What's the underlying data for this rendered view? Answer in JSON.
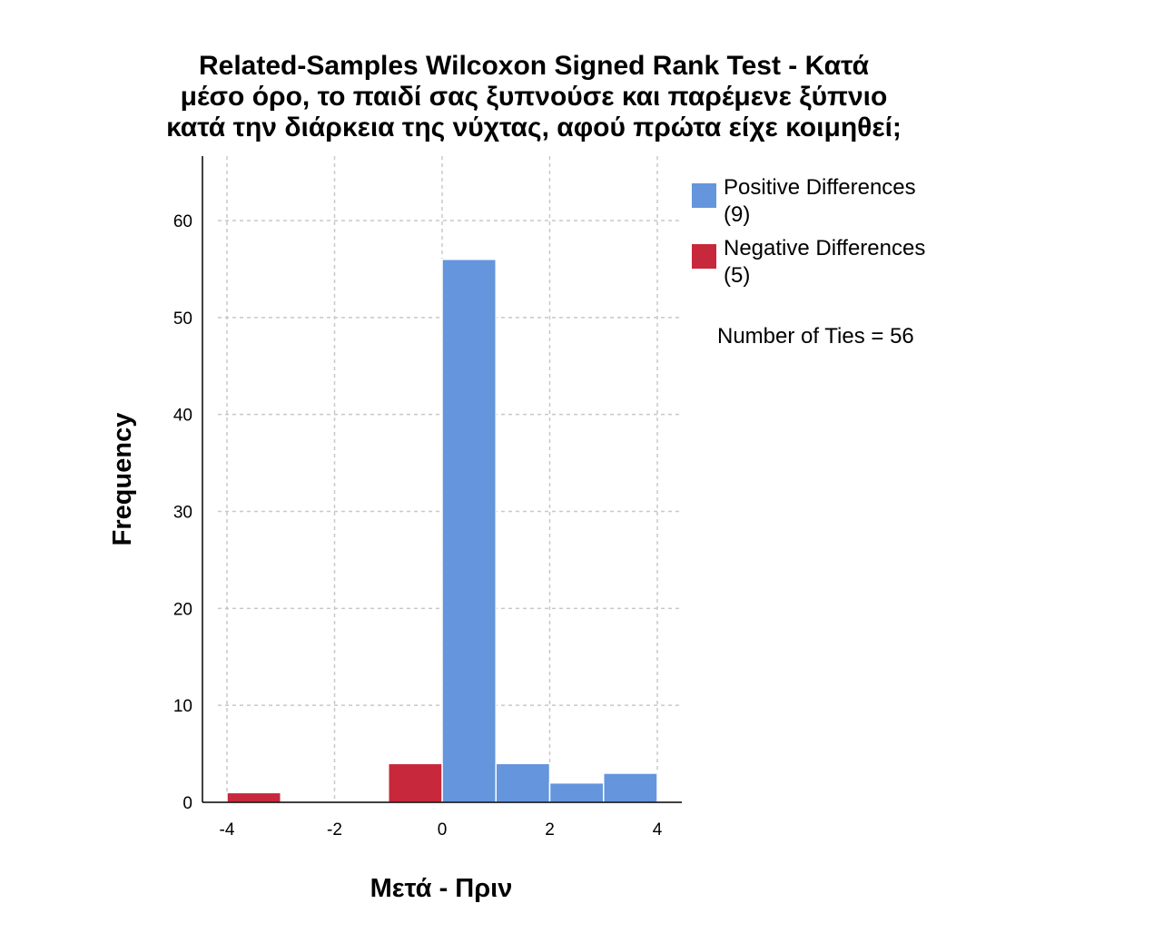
{
  "chart_data": {
    "type": "bar",
    "title": [
      "Related-Samples Wilcoxon Signed Rank Test - Κατά",
      "μέσο όρο, το παιδί σας ξυπνούσε και παρέμενε ξύπνιο",
      "κατά την διάρκεια της νύχτας, αφού πρώτα είχε κοιμηθεί;"
    ],
    "xlabel": "Μετά - Πριν",
    "ylabel": "Frequency",
    "xlim": [
      -4.0,
      4.0
    ],
    "ylim": [
      0,
      66
    ],
    "xticks": [
      -4,
      -2,
      0,
      2,
      4
    ],
    "yticks": [
      0,
      10,
      20,
      30,
      40,
      50,
      60
    ],
    "grid": true,
    "legend_position": "right",
    "series": [
      {
        "name": "Positive Differences",
        "count_label": "(9)",
        "color": "#6495dd",
        "bins": [
          {
            "x_start": 0.0,
            "x_end": 1.0,
            "value": 56
          },
          {
            "x_start": 1.0,
            "x_end": 2.0,
            "value": 4
          },
          {
            "x_start": 2.0,
            "x_end": 3.0,
            "value": 2
          },
          {
            "x_start": 3.0,
            "x_end": 4.0,
            "value": 3
          }
        ]
      },
      {
        "name": "Negative Differences",
        "count_label": "(5)",
        "color": "#c8283c",
        "bins": [
          {
            "x_start": -4.0,
            "x_end": -3.0,
            "value": 1
          },
          {
            "x_start": -1.0,
            "x_end": 0.0,
            "value": 4
          }
        ]
      }
    ],
    "annotation": "Number of Ties = 56"
  }
}
